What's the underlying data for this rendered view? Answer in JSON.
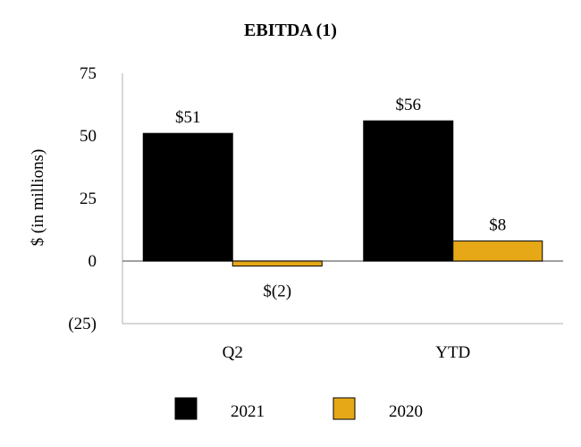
{
  "chart_data": {
    "type": "bar",
    "title": "EBITDA (1)",
    "ylabel": "$ (in millions)",
    "xlabel": "",
    "categories": [
      "Q2",
      "YTD"
    ],
    "series": [
      {
        "name": "2021",
        "color": "#000000",
        "values": [
          51,
          56
        ],
        "labels": [
          "$51",
          "$56"
        ]
      },
      {
        "name": "2020",
        "color": "#E6A817",
        "values": [
          -2,
          8
        ],
        "labels": [
          "$(2)",
          "$8"
        ]
      }
    ],
    "ylim": [
      -25,
      75
    ],
    "yticks": [
      75,
      50,
      25,
      0,
      -25
    ],
    "ytick_labels": [
      "75",
      "50",
      "25",
      "0",
      "(25)"
    ],
    "grid": false,
    "legend_position": "bottom"
  }
}
